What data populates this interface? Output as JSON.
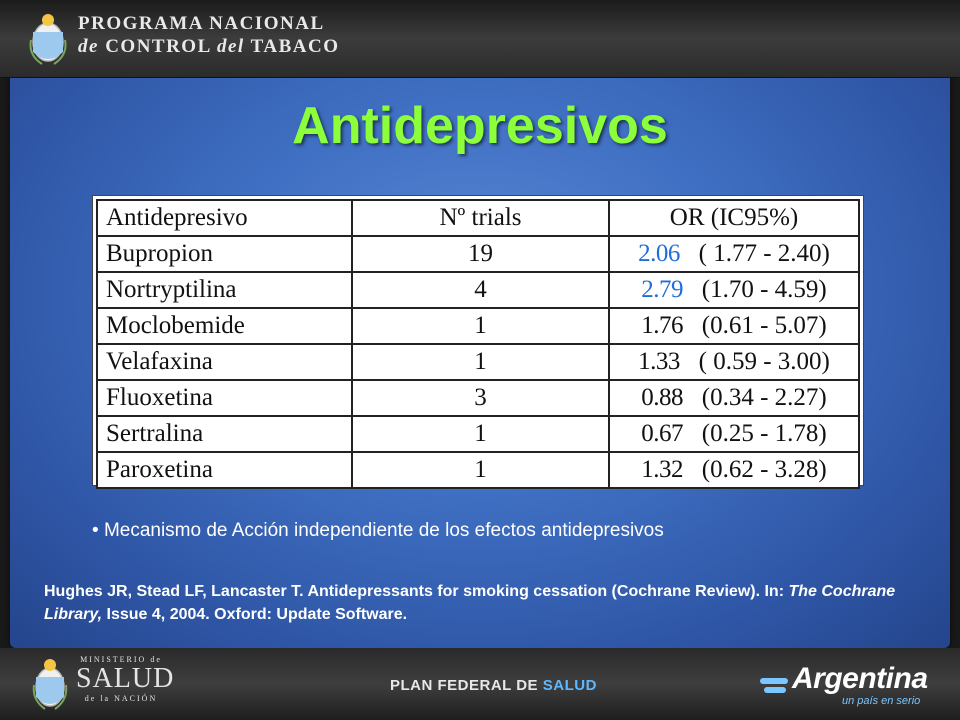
{
  "header": {
    "line1": "PROGRAMA NACIONAL",
    "line2_pre": "de ",
    "line2_mid": "CONTROL ",
    "line2_italic": "del",
    "line2_post": " TABACO"
  },
  "title": "Antidepresivos",
  "table": {
    "headers": [
      "Antidepresivo",
      "Nº trials",
      "OR (IC95%)"
    ],
    "rows": [
      {
        "name": "Bupropion",
        "trials": "19",
        "or": "2.06",
        "ci": "( 1.77 - 2.40)",
        "highlight": true
      },
      {
        "name": "Nortryptilina",
        "trials": "4",
        "or": "2.79",
        "ci": "(1.70 - 4.59)",
        "highlight": true
      },
      {
        "name": "Moclobemide",
        "trials": "1",
        "or": "1.76",
        "ci": "(0.61 - 5.07)",
        "highlight": false
      },
      {
        "name": "Velafaxina",
        "trials": "1",
        "or": "1.33",
        "ci": "( 0.59 - 3.00)",
        "highlight": false
      },
      {
        "name": "Fluoxetina",
        "trials": "3",
        "or": "0.88",
        "ci": "(0.34 - 2.27)",
        "highlight": false
      },
      {
        "name": "Sertralina",
        "trials": "1",
        "or": "0.67",
        "ci": "(0.25 - 1.78)",
        "highlight": false
      },
      {
        "name": "Paroxetina",
        "trials": "1",
        "or": "1.32",
        "ci": "(0.62 - 3.28)",
        "highlight": false
      }
    ]
  },
  "bullet": "Mecanismo de Acción independiente de los efectos antidepresivos",
  "reference": {
    "part1": "Hughes JR, Stead LF, Lancaster T. Antidepressants for smoking cessation (Cochrane Review). In: ",
    "italic": "The Cochrane Library,",
    "part2": " Issue 4, 2004. Oxford: Update Software."
  },
  "footer": {
    "ministerio_top": "MINISTERIO de",
    "ministerio_main": "SALUD",
    "ministerio_bottom": "de la NACIÓN",
    "plan_pre": "PLAN FEDERAL DE ",
    "plan_salud": "SALUD",
    "argentina": "Argentina",
    "argentina_tag": "un país en serio"
  },
  "colors": {
    "title": "#8dff3a",
    "highlight_or": "#1f6fd8",
    "panel": "#3f6fc2"
  },
  "icons": {
    "top_logo": "escudo-icon",
    "bottom_logo": "escudo-icon"
  }
}
